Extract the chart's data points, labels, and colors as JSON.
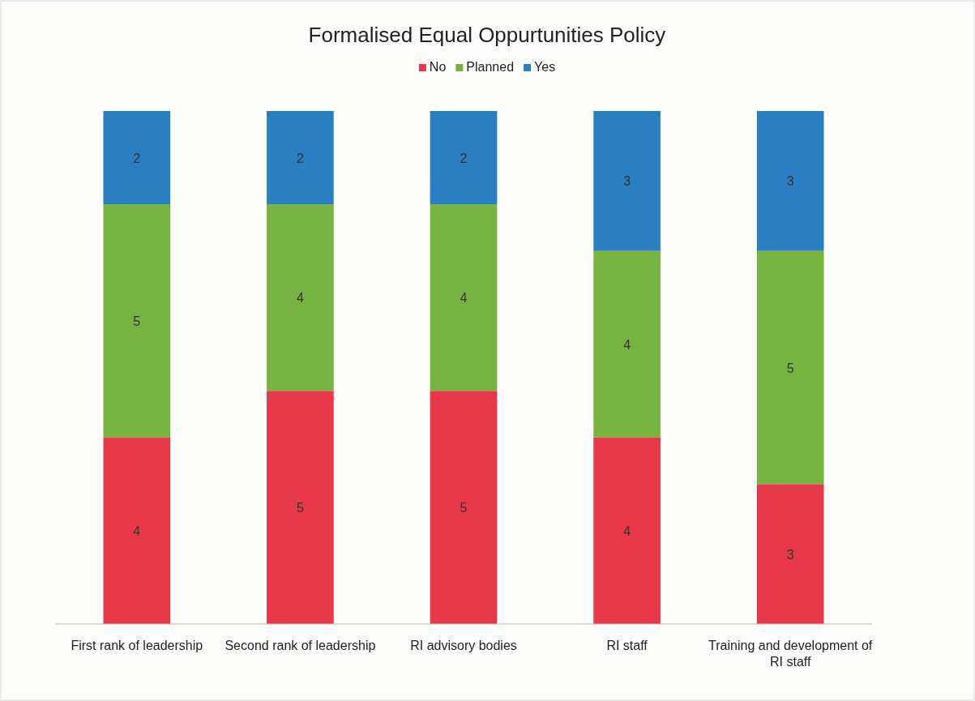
{
  "chart_data": {
    "type": "bar",
    "title": "Formalised Equal Oppurtunities Policy",
    "stacked": true,
    "data_labels": true,
    "legend": "top",
    "categories": [
      "First rank of leadership",
      "Second rank of leadership",
      "RI advisory bodies",
      "RI staff",
      "Training and development of RI staff"
    ],
    "series": [
      {
        "name": "No",
        "color": "#e8394a",
        "values": [
          4,
          5,
          5,
          4,
          3
        ]
      },
      {
        "name": "Planned",
        "color": "#77b341",
        "values": [
          5,
          4,
          4,
          4,
          5
        ]
      },
      {
        "name": "Yes",
        "color": "#2a7fc1",
        "values": [
          2,
          2,
          2,
          3,
          3
        ]
      }
    ]
  }
}
